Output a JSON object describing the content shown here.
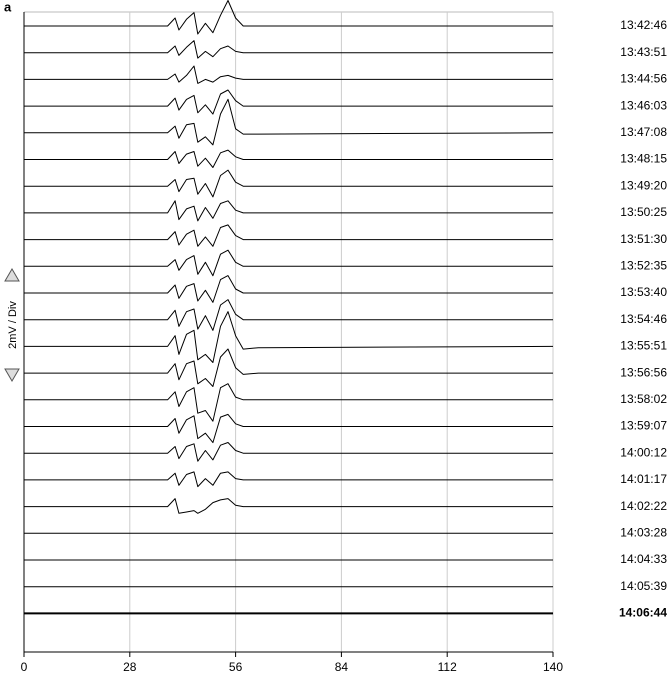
{
  "chart_data": {
    "type": "line",
    "panel_label": "a",
    "y_label": "2mV / Div",
    "x": [
      0,
      38,
      40,
      41,
      43,
      45,
      46,
      48,
      50,
      52,
      54,
      56,
      58,
      62,
      140
    ],
    "xlim": [
      0,
      140
    ],
    "xticks": [
      0,
      28,
      56,
      84,
      112,
      140
    ],
    "grid": true,
    "color": "#000000",
    "series": [
      {
        "name": "13:42:46",
        "values": [
          0,
          0,
          0.6,
          -0.3,
          0.5,
          1.0,
          -0.6,
          0.2,
          -0.5,
          0.8,
          1.9,
          0.6,
          0,
          0,
          0
        ]
      },
      {
        "name": "13:43:51",
        "values": [
          0,
          0,
          0.5,
          -0.2,
          0.4,
          0.9,
          -0.4,
          0.1,
          -0.3,
          0.3,
          0.5,
          0.1,
          0,
          0,
          0
        ]
      },
      {
        "name": "13:44:56",
        "values": [
          0,
          0,
          0.4,
          -0.2,
          0.3,
          1.0,
          -0.3,
          0.0,
          -0.2,
          0.2,
          0.3,
          0.1,
          0,
          0,
          0
        ]
      },
      {
        "name": "13:46:03",
        "values": [
          0,
          0,
          0.6,
          -0.3,
          0.5,
          0.8,
          -0.5,
          0.1,
          -0.6,
          0.9,
          1.2,
          0.4,
          0,
          0,
          0
        ]
      },
      {
        "name": "13:47:08",
        "values": [
          0,
          0,
          0.5,
          -0.4,
          0.6,
          0.7,
          -0.7,
          -0.3,
          -0.9,
          1.4,
          2.5,
          0.3,
          -0.1,
          -0.1,
          0
        ]
      },
      {
        "name": "13:48:15",
        "values": [
          0,
          0,
          0.6,
          -0.3,
          0.4,
          0.6,
          -0.5,
          0.1,
          -0.6,
          0.5,
          0.7,
          0.2,
          0,
          0,
          0
        ]
      },
      {
        "name": "13:49:20",
        "values": [
          0,
          0,
          0.5,
          -0.4,
          0.5,
          0.6,
          -0.6,
          0.2,
          -0.8,
          0.8,
          1.2,
          0.3,
          0,
          0,
          0
        ]
      },
      {
        "name": "13:50:25",
        "values": [
          0,
          0,
          0.9,
          -0.5,
          0.3,
          0.5,
          -0.6,
          0.4,
          -0.4,
          0.7,
          0.9,
          0.2,
          0,
          0,
          0
        ]
      },
      {
        "name": "13:51:30",
        "values": [
          0,
          0,
          0.6,
          -0.4,
          0.4,
          0.7,
          -0.5,
          0.2,
          -0.5,
          0.9,
          1.1,
          0.3,
          0,
          0,
          0
        ]
      },
      {
        "name": "13:52:35",
        "values": [
          0,
          0,
          0.5,
          -0.3,
          0.5,
          0.8,
          -0.6,
          0.3,
          -0.7,
          0.9,
          1.2,
          0.3,
          0,
          0,
          0
        ]
      },
      {
        "name": "13:53:40",
        "values": [
          0,
          0,
          0.6,
          -0.4,
          0.5,
          0.7,
          -0.6,
          0.2,
          -0.7,
          1.0,
          1.3,
          0.3,
          0,
          0,
          0
        ]
      },
      {
        "name": "13:54:46",
        "values": [
          0,
          0,
          0.7,
          -0.5,
          0.6,
          0.8,
          -0.7,
          0.3,
          -0.8,
          1.1,
          1.5,
          0.4,
          0,
          0,
          0
        ]
      },
      {
        "name": "13:55:51",
        "values": [
          0,
          0,
          0.8,
          -0.6,
          0.9,
          1.2,
          -1.0,
          -0.6,
          -1.2,
          1.5,
          2.6,
          0.8,
          -0.2,
          -0.1,
          0
        ]
      },
      {
        "name": "13:56:56",
        "values": [
          0,
          0,
          0.7,
          -0.5,
          0.7,
          0.9,
          -0.8,
          -0.4,
          -1.0,
          1.2,
          1.8,
          0.4,
          -0.1,
          0,
          0
        ]
      },
      {
        "name": "13:58:02",
        "values": [
          0,
          0,
          0.6,
          -0.5,
          0.6,
          0.9,
          -1.0,
          -0.8,
          -1.6,
          0.9,
          1.2,
          0.2,
          0,
          0,
          0
        ]
      },
      {
        "name": "13:59:07",
        "values": [
          0,
          0,
          0.6,
          -0.5,
          0.5,
          0.8,
          -0.9,
          -0.5,
          -1.2,
          0.7,
          0.9,
          0.2,
          0,
          0,
          0
        ]
      },
      {
        "name": "14:00:12",
        "values": [
          0,
          0,
          0.5,
          -0.4,
          0.5,
          0.7,
          -0.6,
          0.2,
          -0.5,
          0.6,
          0.8,
          0.2,
          0,
          0,
          0
        ]
      },
      {
        "name": "14:01:17",
        "values": [
          0,
          0,
          0.5,
          -0.4,
          0.4,
          0.6,
          -0.5,
          0.1,
          -0.4,
          0.5,
          0.6,
          0.1,
          0,
          0,
          0
        ]
      },
      {
        "name": "14:02:22",
        "values": [
          0,
          0,
          0.6,
          -0.5,
          -0.4,
          -0.3,
          -0.5,
          -0.2,
          0.3,
          0.5,
          0.6,
          0.1,
          0,
          0,
          0
        ]
      },
      {
        "name": "14:03:28",
        "values": [
          0,
          0,
          0,
          0,
          0,
          0,
          0,
          0,
          0,
          0,
          0,
          0,
          0,
          0,
          0
        ]
      },
      {
        "name": "14:04:33",
        "values": [
          0,
          0,
          0,
          0,
          0,
          0,
          0,
          0,
          0,
          0,
          0,
          0,
          0,
          0,
          0
        ]
      },
      {
        "name": "14:05:39",
        "values": [
          0,
          0,
          0,
          0,
          0,
          0,
          0,
          0,
          0,
          0,
          0,
          0,
          0,
          0,
          0
        ]
      },
      {
        "name": "14:06:44",
        "values": [
          0,
          0,
          0,
          0,
          0,
          0,
          0,
          0,
          0,
          0,
          0,
          0,
          0,
          0,
          0
        ]
      }
    ]
  }
}
